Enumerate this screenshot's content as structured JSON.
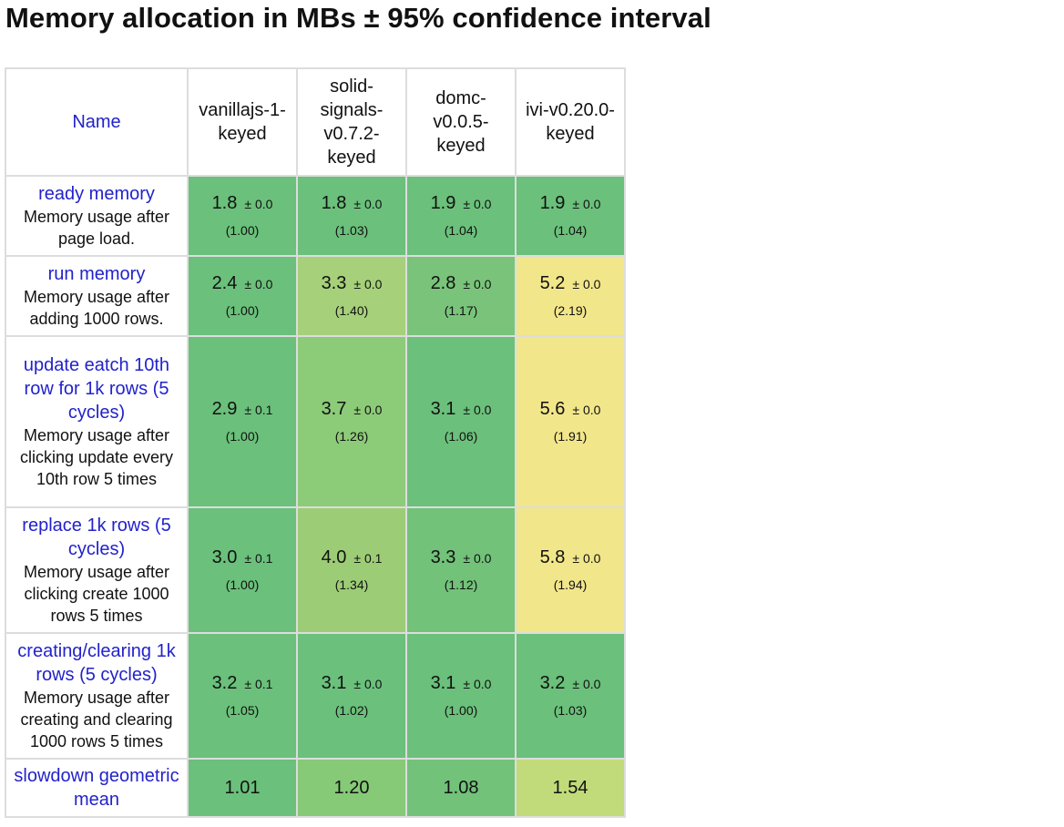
{
  "title": "Memory allocation in MBs ± 95% confidence interval",
  "colors": {
    "best": "#6bc07b",
    "good": "#9ccd76",
    "mid": "#c8dc7a",
    "worse": "#f2e68a",
    "link": "#2222cc",
    "border": "#dddddd"
  },
  "table": {
    "name_header": "Name",
    "columns": [
      "vanillajs-1-keyed",
      "solid-signals-v0.7.2-keyed",
      "domc-v0.0.5-keyed",
      "ivi-v0.20.0-keyed"
    ],
    "rows": [
      {
        "name": "ready memory",
        "desc": "Memory usage after page load.",
        "cells": [
          {
            "value": "1.8",
            "ci": "± 0.0",
            "ratio": "(1.00)",
            "color": "#6bc07b"
          },
          {
            "value": "1.8",
            "ci": "± 0.0",
            "ratio": "(1.03)",
            "color": "#6bc07b"
          },
          {
            "value": "1.9",
            "ci": "± 0.0",
            "ratio": "(1.04)",
            "color": "#6bc07b"
          },
          {
            "value": "1.9",
            "ci": "± 0.0",
            "ratio": "(1.04)",
            "color": "#6bc07b"
          }
        ]
      },
      {
        "name": "run memory",
        "desc": "Memory usage after adding 1000 rows.",
        "cells": [
          {
            "value": "2.4",
            "ci": "± 0.0",
            "ratio": "(1.00)",
            "color": "#6bc07b"
          },
          {
            "value": "3.3",
            "ci": "± 0.0",
            "ratio": "(1.40)",
            "color": "#a6d07a"
          },
          {
            "value": "2.8",
            "ci": "± 0.0",
            "ratio": "(1.17)",
            "color": "#79c47a"
          },
          {
            "value": "5.2",
            "ci": "± 0.0",
            "ratio": "(2.19)",
            "color": "#f2e68a"
          }
        ]
      },
      {
        "name": "update eatch 10th row for 1k rows (5 cycles)",
        "desc": "Memory usage after clicking update every 10th row 5 times",
        "cells": [
          {
            "value": "2.9",
            "ci": "± 0.1",
            "ratio": "(1.00)",
            "color": "#6bc07b"
          },
          {
            "value": "3.7",
            "ci": "± 0.0",
            "ratio": "(1.26)",
            "color": "#8ccb78"
          },
          {
            "value": "3.1",
            "ci": "± 0.0",
            "ratio": "(1.06)",
            "color": "#6bc07b"
          },
          {
            "value": "5.6",
            "ci": "± 0.0",
            "ratio": "(1.91)",
            "color": "#f2e68a"
          }
        ]
      },
      {
        "name": "replace 1k rows (5 cycles)",
        "desc": "Memory usage after clicking create 1000 rows 5 times",
        "cells": [
          {
            "value": "3.0",
            "ci": "± 0.1",
            "ratio": "(1.00)",
            "color": "#6bc07b"
          },
          {
            "value": "4.0",
            "ci": "± 0.1",
            "ratio": "(1.34)",
            "color": "#9ccd76"
          },
          {
            "value": "3.3",
            "ci": "± 0.0",
            "ratio": "(1.12)",
            "color": "#72c27a"
          },
          {
            "value": "5.8",
            "ci": "± 0.0",
            "ratio": "(1.94)",
            "color": "#f2e68a"
          }
        ]
      },
      {
        "name": "creating/clearing 1k rows (5 cycles)",
        "desc": "Memory usage after creating and clearing 1000 rows 5 times",
        "cells": [
          {
            "value": "3.2",
            "ci": "± 0.1",
            "ratio": "(1.05)",
            "color": "#6bc07b"
          },
          {
            "value": "3.1",
            "ci": "± 0.0",
            "ratio": "(1.02)",
            "color": "#6bc07b"
          },
          {
            "value": "3.1",
            "ci": "± 0.0",
            "ratio": "(1.00)",
            "color": "#6bc07b"
          },
          {
            "value": "3.2",
            "ci": "± 0.0",
            "ratio": "(1.03)",
            "color": "#6bc07b"
          }
        ]
      }
    ],
    "mean_row": {
      "name": "slowdown geometric mean",
      "cells": [
        {
          "value": "1.01",
          "color": "#6bc07b"
        },
        {
          "value": "1.20",
          "color": "#86c977"
        },
        {
          "value": "1.08",
          "color": "#72c27a"
        },
        {
          "value": "1.54",
          "color": "#c2db7a"
        }
      ]
    }
  }
}
